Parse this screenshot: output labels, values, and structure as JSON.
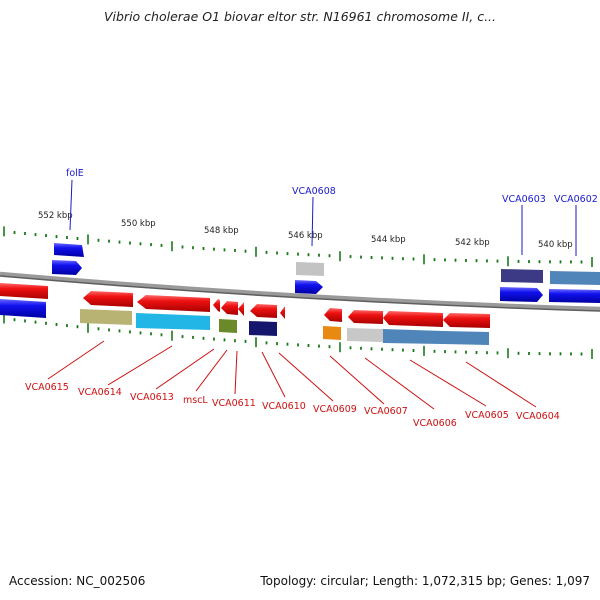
{
  "title": "Vibrio cholerae O1 biovar eltor str. N16961 chromosome II, c...",
  "footer": {
    "accession": "Accession: NC_002506",
    "summary": "Topology: circular; Length: 1,072,315 bp; Genes: 1,097"
  },
  "scale_labels": [
    "552 kbp",
    "550 kbp",
    "548 kbp",
    "546 kbp",
    "544 kbp",
    "542 kbp",
    "540 kbp"
  ],
  "top_genes": [
    "folE",
    "VCA0608",
    "VCA0603",
    "VCA0602"
  ],
  "bottom_genes": [
    "VCA0615",
    "VCA0614",
    "VCA0613",
    "mscL",
    "VCA0611",
    "VCA0610",
    "VCA0609",
    "VCA0607",
    "VCA0606",
    "VCA0605",
    "VCA0604"
  ],
  "colors": {
    "gene_forward": "#1f1fe0",
    "gene_reverse": "#e8101a",
    "label_top": "#1a1acc",
    "label_bottom": "#cc1111",
    "tick": "#1a7a1a",
    "backbone": "#7a7a7a"
  }
}
